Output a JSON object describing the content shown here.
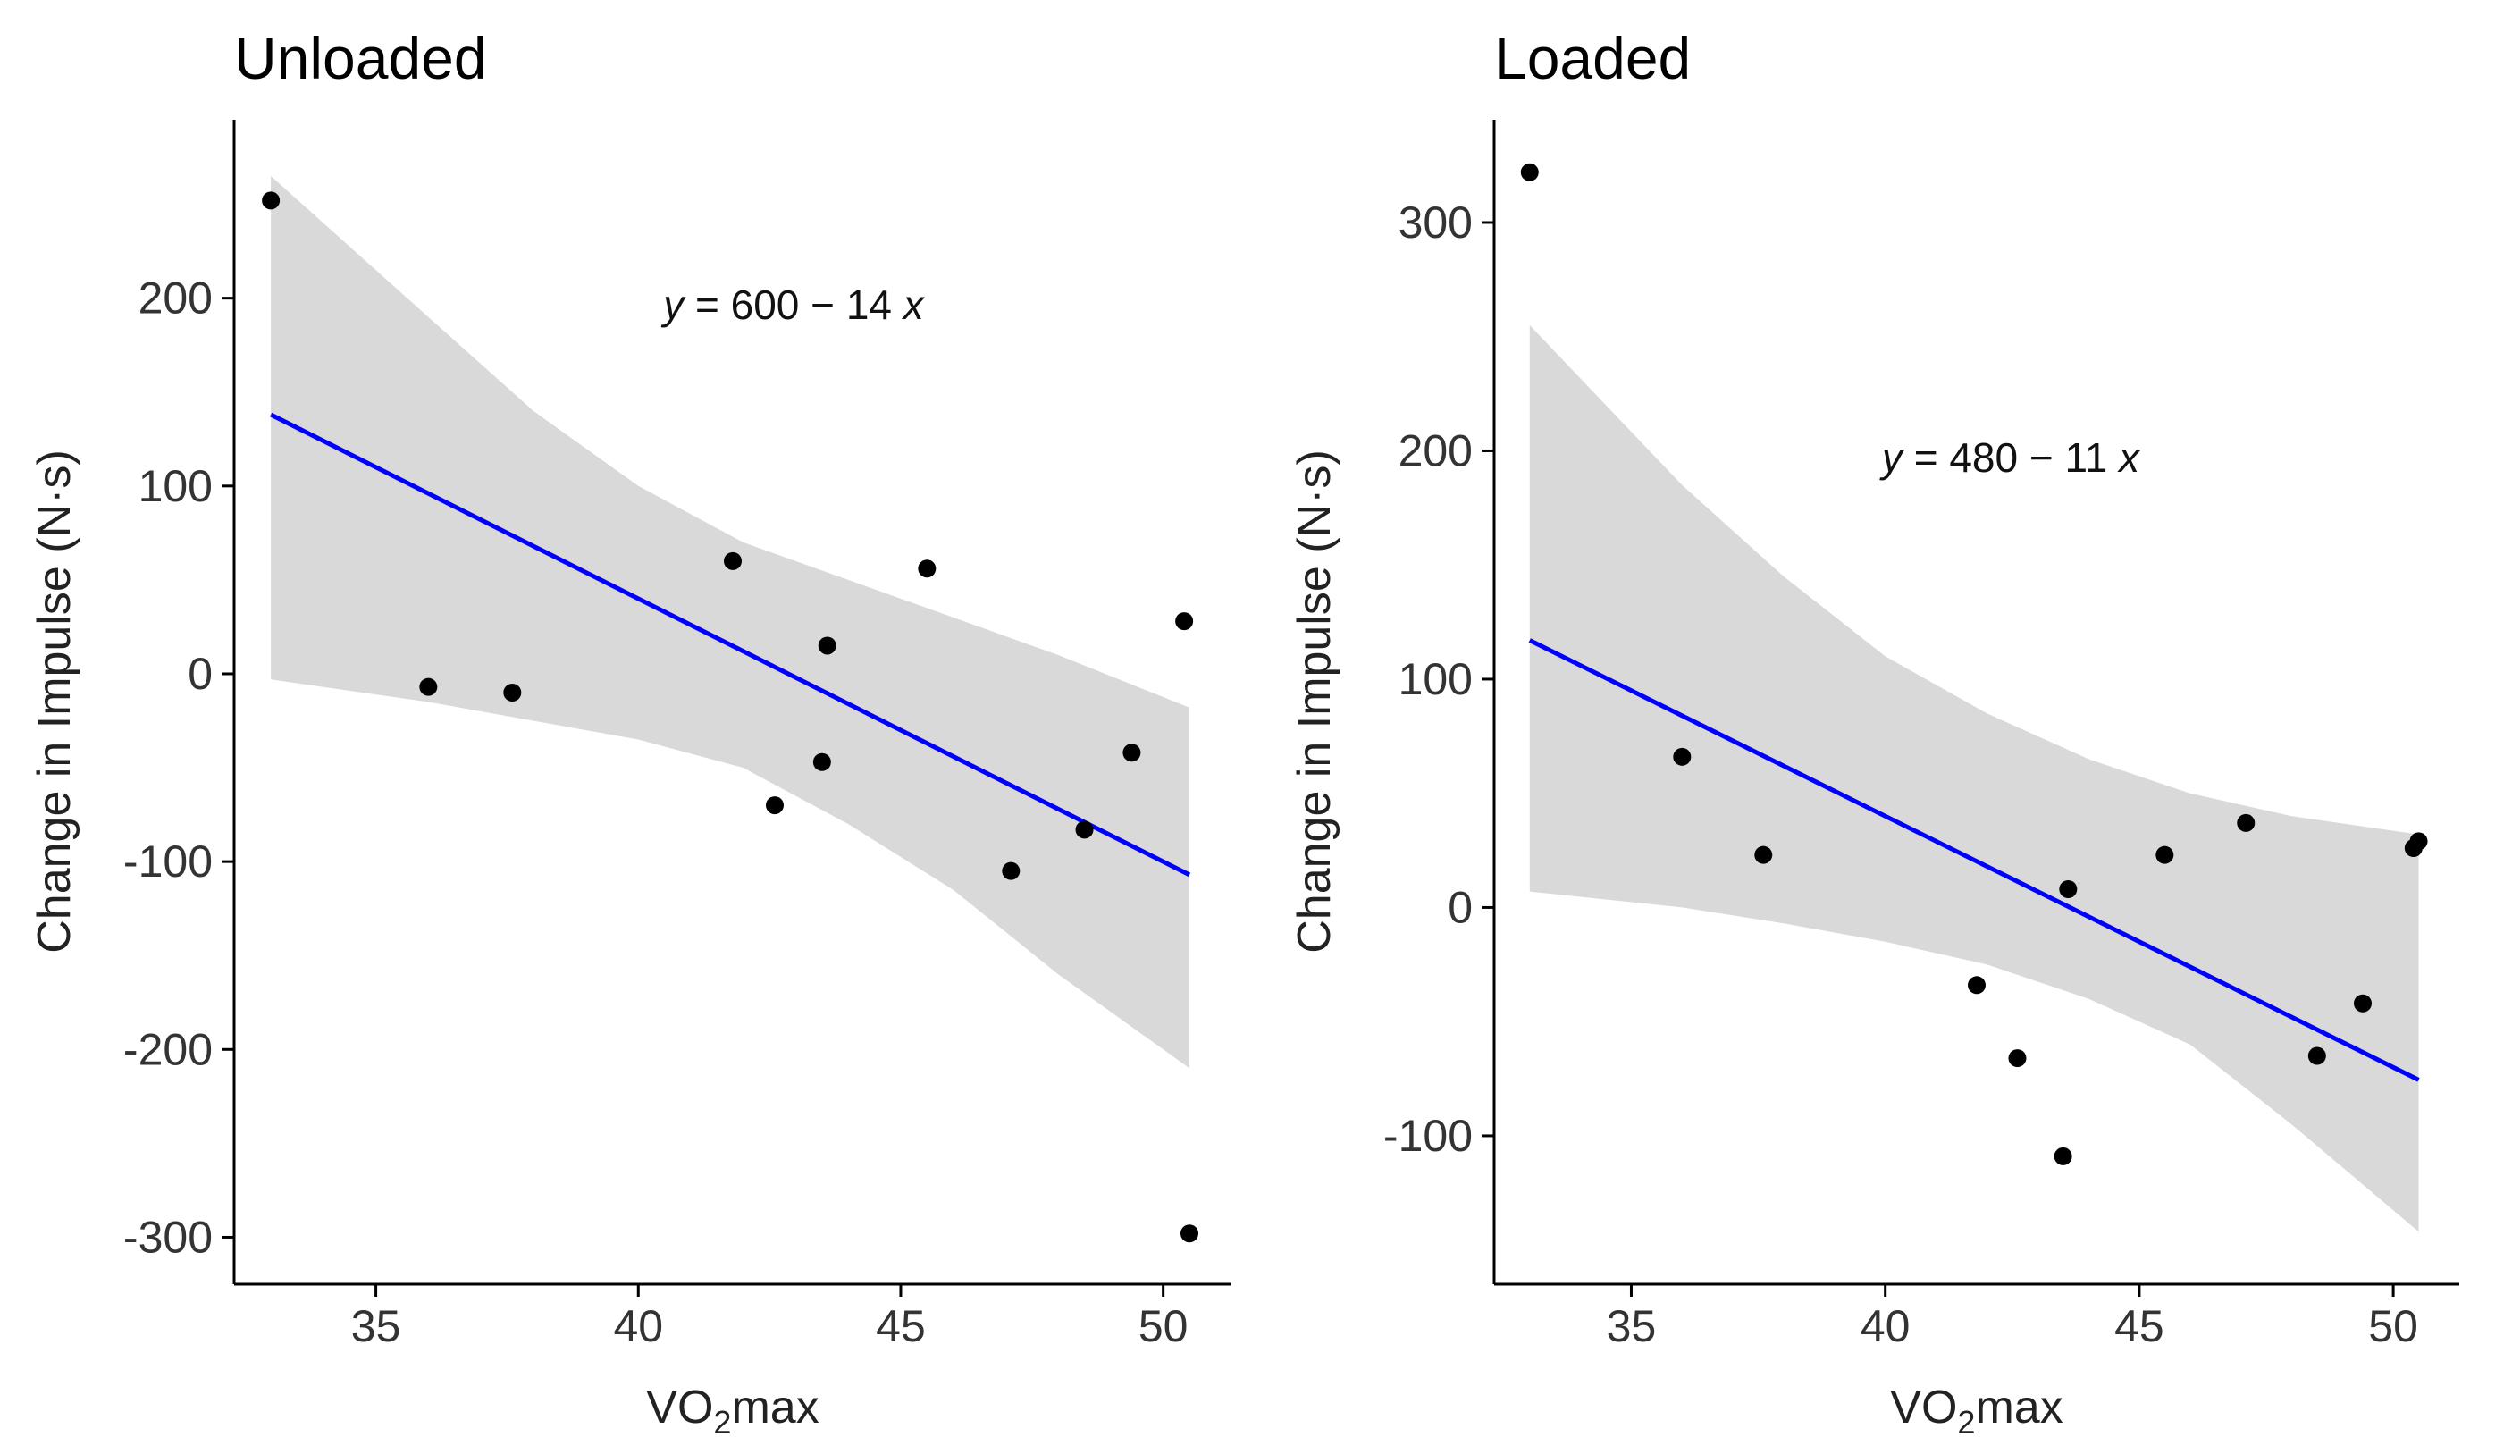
{
  "chart_data": [
    {
      "type": "scatter",
      "title": "Unloaded",
      "xlabel": "VO2max",
      "xlabel_main": "VO",
      "xlabel_sub": "2",
      "xlabel_tail": "max",
      "ylabel": "Change in Impulse (N·s)",
      "xlim": [
        32.3,
        51.3
      ],
      "ylim": [
        -325,
        295
      ],
      "xticks": [
        35,
        40,
        45,
        50
      ],
      "xtick_labels": [
        "35",
        "40",
        "45",
        "50"
      ],
      "yticks": [
        -300,
        -200,
        -100,
        0,
        100,
        200
      ],
      "ytick_labels": [
        "-300",
        "-200",
        "-100",
        "0",
        "100",
        "200"
      ],
      "points": {
        "x": [
          33.0,
          36.0,
          37.6,
          41.8,
          42.6,
          43.5,
          43.6,
          45.5,
          47.1,
          48.5,
          49.4,
          50.4,
          50.5
        ],
        "y": [
          252,
          -7,
          -10,
          60,
          -70,
          -47,
          15,
          56,
          -105,
          -83,
          -42,
          28,
          -298
        ]
      },
      "fit": {
        "intercept": 600,
        "slope": -14,
        "x_range": [
          33.0,
          50.5
        ]
      },
      "band": {
        "x": [
          33.0,
          36.0,
          38.0,
          40.0,
          42.0,
          44.0,
          46.0,
          48.0,
          50.5
        ],
        "lower": [
          -3,
          -15,
          -25,
          -35,
          -50,
          -80,
          -115,
          -160,
          -210
        ],
        "upper": [
          265,
          190,
          140,
          100,
          70,
          50,
          30,
          10,
          -18
        ]
      },
      "equation": {
        "y": "y",
        "rhs": " = 600 − 14 ",
        "x": "x"
      },
      "colors": {
        "fit": "#0000ff",
        "band": "#d9d9d9",
        "points": "#000000"
      }
    },
    {
      "type": "scatter",
      "title": "Loaded",
      "xlabel": "VO2max",
      "xlabel_main": "VO",
      "xlabel_sub": "2",
      "xlabel_tail": "max",
      "ylabel": "Change in Impulse (N·s)",
      "xlim": [
        32.3,
        51.3
      ],
      "ylim": [
        -165,
        345
      ],
      "xticks": [
        35,
        40,
        45,
        50
      ],
      "xtick_labels": [
        "35",
        "40",
        "45",
        "50"
      ],
      "yticks": [
        -100,
        0,
        100,
        200,
        300
      ],
      "ytick_labels": [
        "-100",
        "0",
        "100",
        "200",
        "300"
      ],
      "points": {
        "x": [
          33.0,
          36.0,
          37.6,
          41.8,
          42.6,
          43.5,
          43.6,
          45.5,
          47.1,
          48.5,
          49.4,
          50.4,
          50.5
        ],
        "y": [
          322,
          66,
          23,
          -34,
          -66,
          -109,
          8,
          23,
          37,
          -65,
          -42,
          26,
          29
        ]
      },
      "fit": {
        "intercept": 480,
        "slope": -11,
        "x_range": [
          33.0,
          50.5
        ]
      },
      "band": {
        "x": [
          33.0,
          36.0,
          38.0,
          40.0,
          42.0,
          44.0,
          46.0,
          48.0,
          50.5
        ],
        "lower": [
          7,
          0,
          -7,
          -15,
          -25,
          -40,
          -60,
          -95,
          -142
        ],
        "upper": [
          255,
          185,
          145,
          110,
          85,
          65,
          50,
          40,
          32
        ]
      },
      "equation": {
        "y": "y",
        "rhs": " = 480 − 11 ",
        "x": "x"
      },
      "colors": {
        "fit": "#0000ff",
        "band": "#d9d9d9",
        "points": "#000000"
      }
    }
  ]
}
